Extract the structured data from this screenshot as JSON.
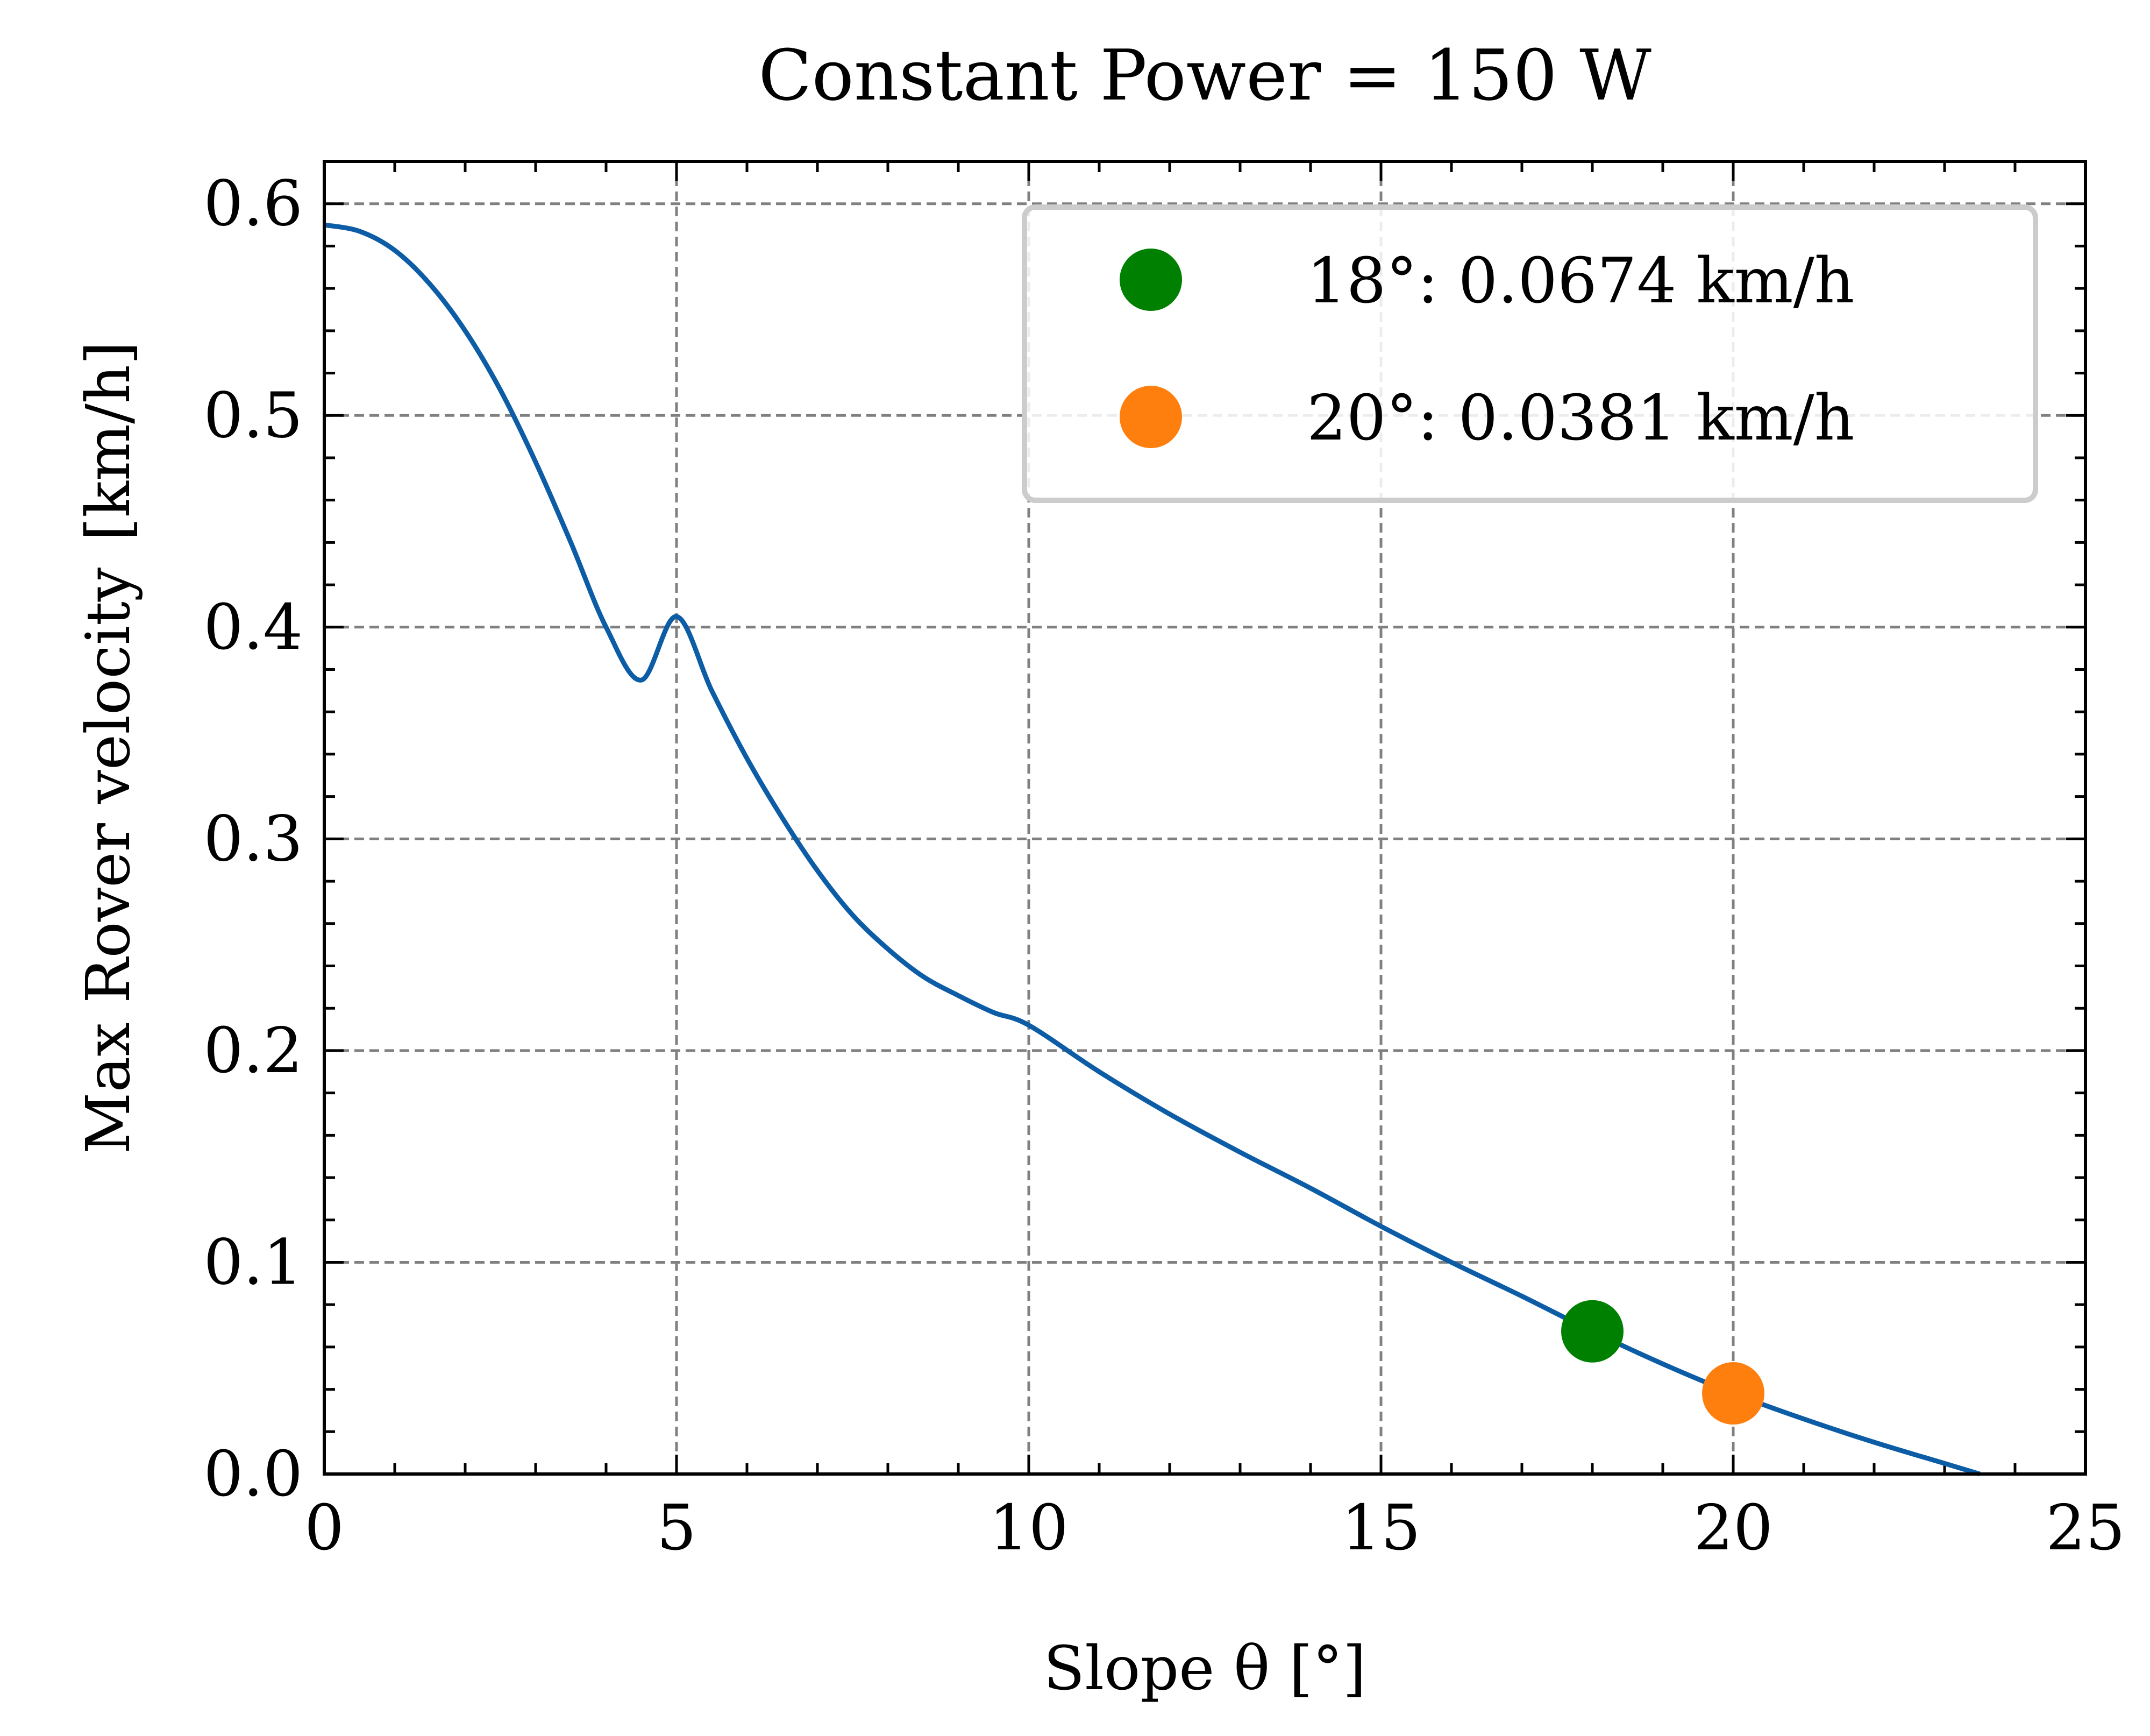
{
  "chart_data": {
    "type": "line",
    "title": "Constant Power = 150 W",
    "xlabel": "Slope θ [°]",
    "ylabel": "Max Rover velocity",
    "ylabel_unit": "[km/h]",
    "xlim": [
      0,
      25
    ],
    "ylim": [
      0,
      0.62
    ],
    "xticks": [
      0,
      5,
      10,
      15,
      20,
      25
    ],
    "xtick_labels": [
      "0",
      "5",
      "10",
      "15",
      "20",
      "25"
    ],
    "yticks": [
      0.0,
      0.1,
      0.2,
      0.3,
      0.4,
      0.5,
      0.6
    ],
    "ytick_labels": [
      "0.0",
      "0.1",
      "0.2",
      "0.3",
      "0.4",
      "0.5",
      "0.6"
    ],
    "grid": true,
    "legend_position": "top-right",
    "colors": {
      "line": "#0C5DA5",
      "marker_18": "#008000",
      "marker_20": "#FF7F0E",
      "grid": "#808080"
    },
    "series": [
      {
        "x": [
          0,
          0.5,
          1,
          1.5,
          2,
          2.5,
          3,
          3.5,
          4,
          4.5,
          5,
          5.5,
          6,
          6.5,
          7,
          7.5,
          8,
          8.5,
          9,
          9.5,
          10,
          11,
          12,
          13,
          14,
          15,
          16,
          17,
          18,
          19,
          20,
          21,
          22,
          23,
          23.5
        ],
        "y": [
          0.59,
          0.587,
          0.578,
          0.562,
          0.54,
          0.512,
          0.478,
          0.44,
          0.4,
          0.375,
          0.405,
          0.37,
          0.338,
          0.31,
          0.285,
          0.264,
          0.248,
          0.235,
          0.226,
          0.218,
          0.212,
          0.19,
          0.17,
          0.152,
          0.135,
          0.117,
          0.1,
          0.084,
          0.0674,
          0.052,
          0.0381,
          0.026,
          0.015,
          0.005,
          0.0
        ]
      }
    ],
    "points": [
      {
        "x": 18,
        "y": 0.0674,
        "label": "18°: 0.0674 km/h",
        "color": "#008000"
      },
      {
        "x": 20,
        "y": 0.0381,
        "label": "20°: 0.0381 km/h",
        "color": "#FF7F0E"
      }
    ]
  }
}
